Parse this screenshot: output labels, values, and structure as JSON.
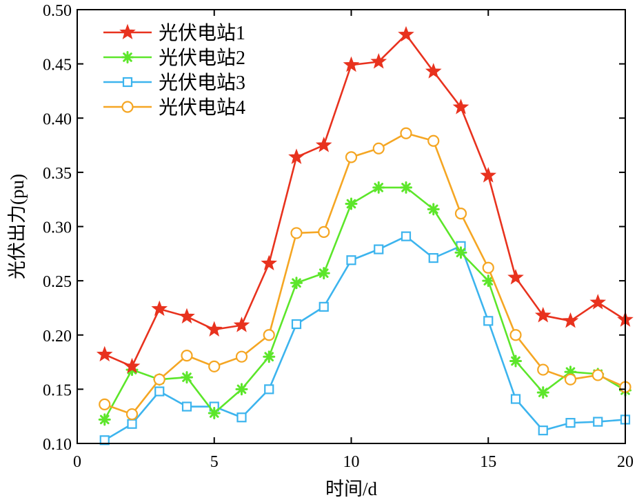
{
  "chart_data": {
    "type": "line",
    "title": "",
    "xlabel": "时间/d",
    "ylabel": "光伏出力(pu)",
    "xlim": [
      0,
      20
    ],
    "ylim": [
      0.1,
      0.5
    ],
    "xticks": [
      0,
      5,
      10,
      15,
      20
    ],
    "yticks": [
      0.1,
      0.15,
      0.2,
      0.25,
      0.3,
      0.35,
      0.4,
      0.45,
      0.5
    ],
    "xtick_labels": [
      "0",
      "5",
      "10",
      "15",
      "20"
    ],
    "ytick_labels": [
      "0.10",
      "0.15",
      "0.20",
      "0.25",
      "0.30",
      "0.35",
      "0.40",
      "0.45",
      "0.50"
    ],
    "grid": false,
    "legend_position": "top-left",
    "x": [
      1,
      2,
      3,
      4,
      5,
      6,
      7,
      8,
      9,
      10,
      11,
      12,
      13,
      14,
      15,
      16,
      17,
      18,
      19,
      20
    ],
    "series": [
      {
        "name": "光伏电站1",
        "color": "#e8321e",
        "marker": "star",
        "values": [
          0.182,
          0.171,
          0.224,
          0.217,
          0.205,
          0.209,
          0.266,
          0.364,
          0.375,
          0.449,
          0.452,
          0.477,
          0.443,
          0.41,
          0.347,
          0.253,
          0.218,
          0.213,
          0.23,
          0.214
        ]
      },
      {
        "name": "光伏电站2",
        "color": "#5ce62a",
        "marker": "asterisk",
        "values": [
          0.122,
          0.168,
          0.159,
          0.161,
          0.128,
          0.15,
          0.18,
          0.248,
          0.257,
          0.321,
          0.336,
          0.336,
          0.316,
          0.276,
          0.25,
          0.176,
          0.147,
          0.166,
          0.164,
          0.149
        ]
      },
      {
        "name": "光伏电站3",
        "color": "#3cb4ee",
        "marker": "square",
        "values": [
          0.103,
          0.118,
          0.148,
          0.134,
          0.134,
          0.124,
          0.15,
          0.21,
          0.226,
          0.269,
          0.279,
          0.291,
          0.271,
          0.282,
          0.213,
          0.141,
          0.112,
          0.119,
          0.12,
          0.122
        ]
      },
      {
        "name": "光伏电站4",
        "color": "#f5a623",
        "marker": "circle",
        "values": [
          0.136,
          0.127,
          0.159,
          0.181,
          0.171,
          0.18,
          0.2,
          0.294,
          0.295,
          0.364,
          0.372,
          0.386,
          0.379,
          0.312,
          0.262,
          0.2,
          0.168,
          0.159,
          0.163,
          0.152
        ]
      }
    ]
  }
}
